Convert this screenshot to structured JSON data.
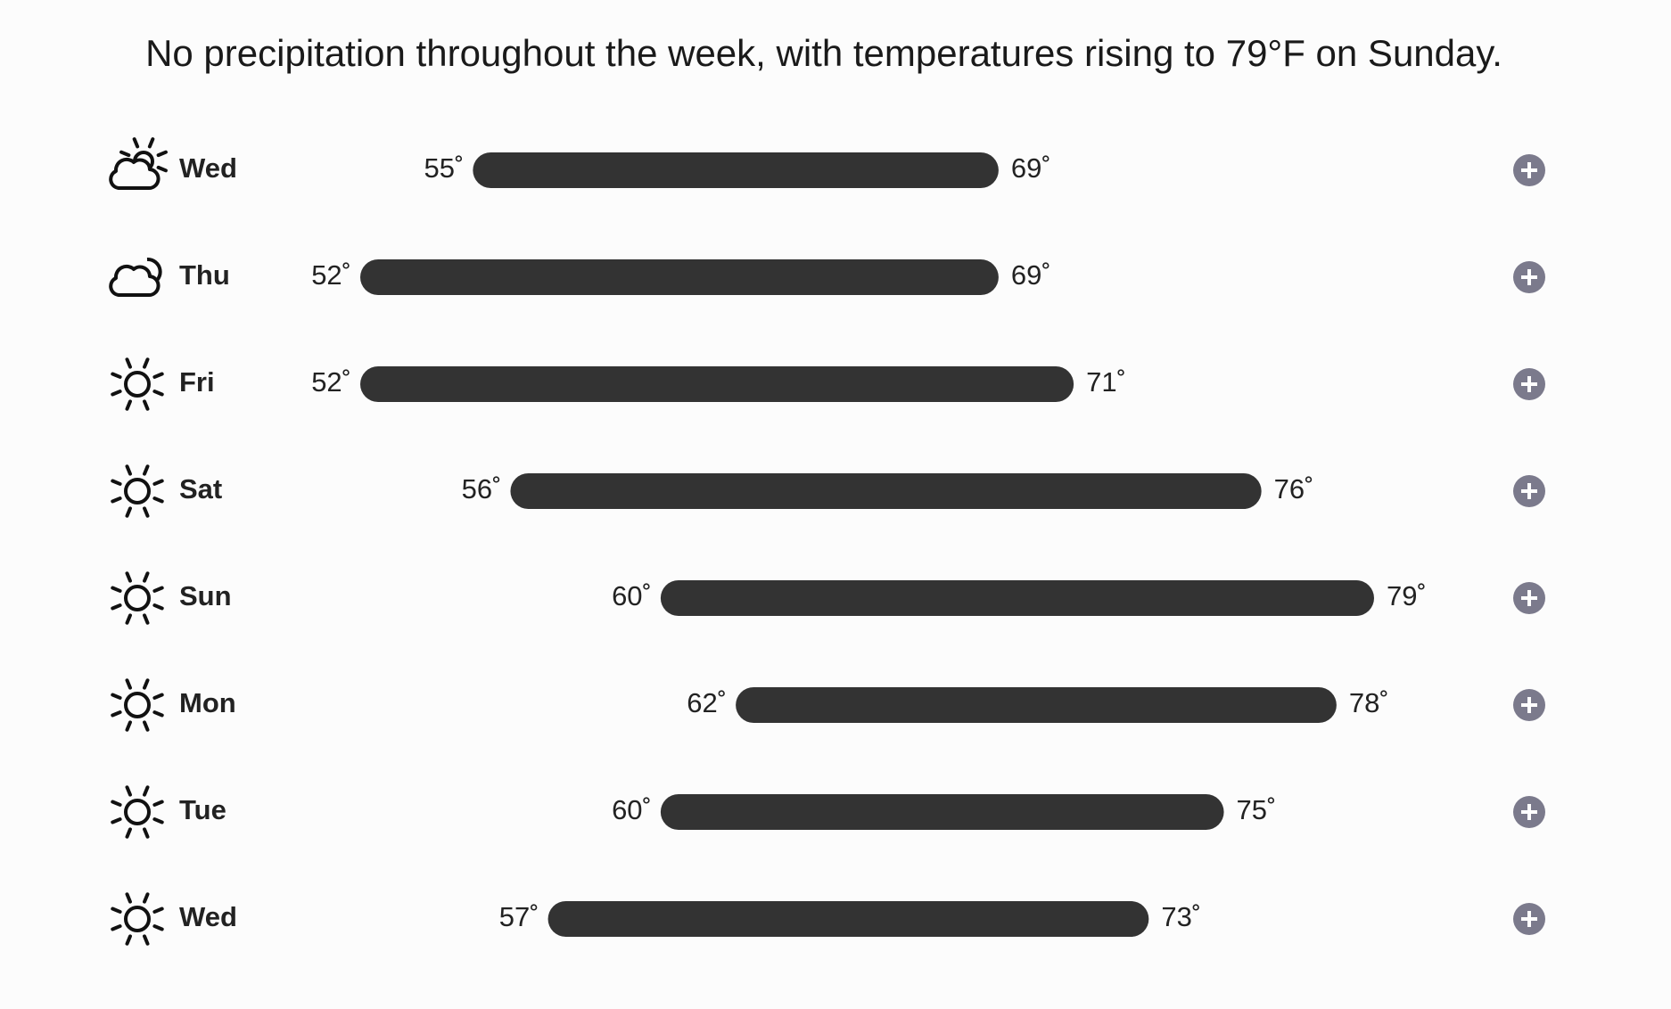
{
  "header": {
    "title": "No precipitation throughout the week, with temperatures rising to 79°F on Sunday."
  },
  "days": [
    {
      "icon": "partly-cloudy",
      "day": "Wed",
      "low": {
        "value": 55,
        "label": "55˚"
      },
      "high": {
        "value": 69,
        "label": "69˚"
      }
    },
    {
      "icon": "partly-cloudy-night",
      "day": "Thu",
      "low": {
        "value": 52,
        "label": "52˚"
      },
      "high": {
        "value": 69,
        "label": "69˚"
      }
    },
    {
      "icon": "sun",
      "day": "Fri",
      "low": {
        "value": 52,
        "label": "52˚"
      },
      "high": {
        "value": 71,
        "label": "71˚"
      }
    },
    {
      "icon": "sun",
      "day": "Sat",
      "low": {
        "value": 56,
        "label": "56˚"
      },
      "high": {
        "value": 76,
        "label": "76˚"
      }
    },
    {
      "icon": "sun",
      "day": "Sun",
      "low": {
        "value": 60,
        "label": "60˚"
      },
      "high": {
        "value": 79,
        "label": "79˚"
      }
    },
    {
      "icon": "sun",
      "day": "Mon",
      "low": {
        "value": 62,
        "label": "62˚"
      },
      "high": {
        "value": 78,
        "label": "78˚"
      }
    },
    {
      "icon": "sun",
      "day": "Tue",
      "low": {
        "value": 60,
        "label": "60˚"
      },
      "high": {
        "value": 75,
        "label": "75˚"
      }
    },
    {
      "icon": "sun",
      "day": "Wed",
      "low": {
        "value": 57,
        "label": "57˚"
      },
      "high": {
        "value": 73,
        "label": "73˚"
      }
    }
  ]
}
